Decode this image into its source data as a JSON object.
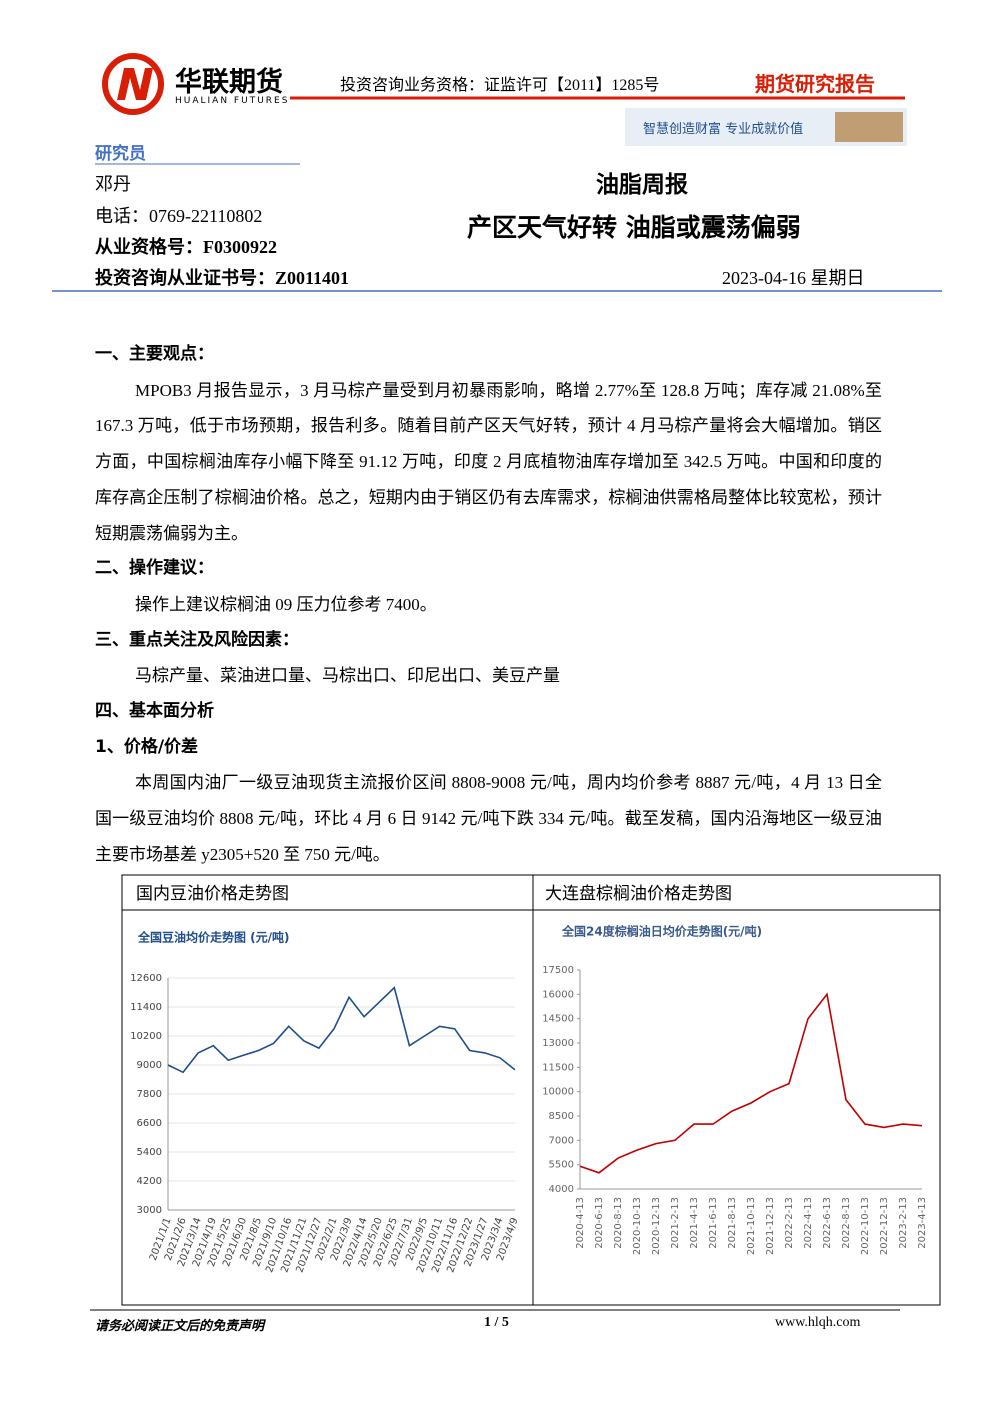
{
  "header": {
    "company": "华联期货",
    "company_en": "HUALIAN FUTURES",
    "qualification": "投资咨询业务资格：证监许可【2011】1285号",
    "report_type": "期货研究报告",
    "slogan": "智慧创造财富  专业成就价值"
  },
  "analyst": {
    "section_label": "研究员",
    "name": "邓丹",
    "phone": "电话：0769-22110802",
    "cert": "从业资格号：F0300922",
    "invest_cert": "投资咨询从业证书号：Z0011401"
  },
  "report": {
    "category": "油脂周报",
    "title": "产区天气好转  油脂或震荡偏弱",
    "date": "2023-04-16 星期日"
  },
  "sections": [
    {
      "heading": "一、主要观点：",
      "paragraphs": [
        "MPOB3 月报告显示，3 月马棕产量受到月初暴雨影响，略增 2.77%至 128.8 万吨；库存减 21.08%至 167.3 万吨，低于市场预期，报告利多。随着目前产区天气好转，预计 4 月马棕产量将会大幅增加。销区方面，中国棕榈油库存小幅下降至 91.12 万吨，印度 2 月底植物油库存增加至 342.5 万吨。中国和印度的库存高企压制了棕榈油价格。总之，短期内由于销区仍有去库需求，棕榈油供需格局整体比较宽松，预计短期震荡偏弱为主。"
      ]
    },
    {
      "heading": "二、操作建议：",
      "paragraphs": [
        "操作上建议棕榈油 09 压力位参考 7400。"
      ]
    },
    {
      "heading": "三、重点关注及风险因素：",
      "paragraphs": [
        "马棕产量、菜油进口量、马棕出口、印尼出口、美豆产量"
      ]
    },
    {
      "heading": "四、基本面分析",
      "subsections": [
        {
          "heading": "1、价格/价差",
          "paragraphs": [
            "本周国内油厂一级豆油现货主流报价区间 8808-9008 元/吨，周内均价参考 8887 元/吨，4 月 13 日全国一级豆油均价 8808 元/吨，环比 4 月 6 日 9142 元/吨下跌 334 元/吨。截至发稿，国内沿海地区一级豆油主要市场基差 y2305+520 至 750 元/吨。"
          ]
        }
      ]
    }
  ],
  "figure_table": {
    "headers": [
      "国内豆油价格走势图",
      "大连盘棕榈油价格走势图"
    ]
  },
  "chart_data": [
    {
      "type": "line",
      "title": "全国豆油均价走势图 (元/吨)",
      "categories": [
        "2021/1/1",
        "2021/2/6",
        "2021/3/14",
        "2021/4/19",
        "2021/5/25",
        "2021/6/30",
        "2021/8/5",
        "2021/9/10",
        "2021/10/16",
        "2021/11/21",
        "2021/12/27",
        "2022/2/1",
        "2022/3/9",
        "2022/4/14",
        "2022/5/20",
        "2022/6/25",
        "2022/7/31",
        "2022/9/5",
        "2022/10/11",
        "2022/11/16",
        "2022/12/22",
        "2023/1/27",
        "2023/3/4",
        "2023/4/9"
      ],
      "values": [
        9000,
        8700,
        9500,
        9800,
        9200,
        9400,
        9600,
        9900,
        10600,
        10000,
        9700,
        10500,
        11800,
        11000,
        11600,
        12200,
        9800,
        10200,
        10600,
        10500,
        9600,
        9500,
        9300,
        8800
      ],
      "color": "#1f4e8c",
      "ylim": [
        3000,
        12600
      ],
      "yticks": [
        3000,
        4200,
        5400,
        6600,
        7800,
        9000,
        10200,
        11400,
        12600
      ],
      "grid": true
    },
    {
      "type": "line",
      "title": "全国24度棕榈油日均价走势图(元/吨)",
      "categories": [
        "2020-4-13",
        "2020-6-13",
        "2020-8-13",
        "2020-10-13",
        "2020-12-13",
        "2021-2-13",
        "2021-4-13",
        "2021-6-13",
        "2021-8-13",
        "2021-10-13",
        "2021-12-13",
        "2022-2-13",
        "2022-4-13",
        "2022-6-13",
        "2022-8-13",
        "2022-10-13",
        "2022-12-13",
        "2023-2-13",
        "2023-4-13"
      ],
      "values": [
        5400,
        5000,
        5900,
        6400,
        6800,
        7000,
        8000,
        8000,
        8800,
        9300,
        10000,
        10500,
        14500,
        16000,
        9500,
        8000,
        7800,
        8000,
        7900
      ],
      "color": "#c00000",
      "ylim": [
        4000,
        17500
      ],
      "yticks": [
        4000,
        5500,
        7000,
        8500,
        10000,
        11500,
        13000,
        14500,
        16000,
        17500
      ],
      "grid": false
    }
  ],
  "footer": {
    "disclaimer": "请务必阅读正文后的免责声明",
    "page": "1 / 5",
    "website": "www.hlqh.com"
  }
}
